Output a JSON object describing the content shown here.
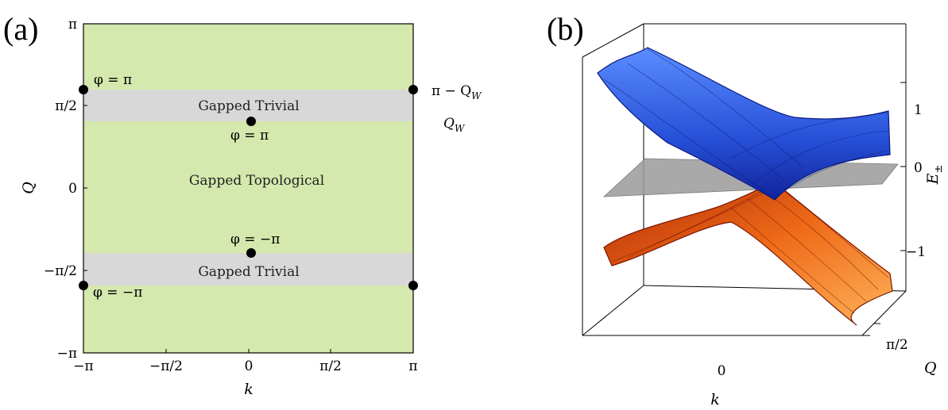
{
  "chart_data": [
    {
      "type": "phase-diagram",
      "panel": "(a)",
      "xlabel": "k",
      "ylabel": "Q",
      "xlim": [
        "-π",
        "π"
      ],
      "ylim": [
        "-π",
        "π"
      ],
      "xticks": [
        "−π",
        "−π/2",
        "0",
        "π/2",
        "π"
      ],
      "yticks": [
        "π",
        "π/2",
        "0",
        "−π/2",
        "−π"
      ],
      "colors": {
        "topological": "#d5e8ad",
        "trivial": "#d8d8d8",
        "point": "#000000"
      },
      "regions": [
        {
          "label": "Gapped Topological",
          "Q_range": [
            -1.57,
            1.57
          ],
          "fill": "topological"
        },
        {
          "label": "Gapped Trivial",
          "Q_range": [
            1.27,
            1.95
          ],
          "fill": "trivial"
        },
        {
          "label": "Gapped Trivial",
          "Q_range": [
            -1.95,
            -1.27
          ],
          "fill": "trivial"
        }
      ],
      "points": [
        {
          "k": -3.1416,
          "Q": 2.1,
          "label": "φ = π"
        },
        {
          "k": 3.1416,
          "Q": 1.95,
          "label": "π − Q_W"
        },
        {
          "k": 0,
          "Q": 1.3,
          "label": "φ = π"
        },
        {
          "k": 0,
          "Q": -1.3,
          "label": "φ = −π"
        },
        {
          "k": -3.1416,
          "Q": -1.95,
          "label": "φ = −π"
        },
        {
          "k": 3.1416,
          "Q": -1.95,
          "label": ""
        }
      ],
      "side_labels": {
        "top": "π − Q_W",
        "bottom": "Q_W"
      }
    },
    {
      "type": "surface3d",
      "panel": "(b)",
      "xlabel": "k",
      "ylabel": "Q",
      "zlabel": "E±",
      "xticks": [
        "0"
      ],
      "yticks": [
        "π/2"
      ],
      "zticks": [
        "1",
        "0",
        "−1"
      ],
      "series": [
        {
          "name": "E+",
          "color": "#1f3fd0"
        },
        {
          "name": "E−",
          "color": "#d24a10"
        }
      ],
      "plane": {
        "z": 0,
        "color": "#9a9a9a"
      }
    }
  ],
  "texts": {
    "panel_a": "(a)",
    "panel_b": "(b)",
    "region_top": "Gapped Trivial",
    "region_mid": "Gapped Topological",
    "region_bot": "Gapped Trivial",
    "ann_tl": "φ = π",
    "ann_center_top": "φ = π",
    "ann_center_bot": "φ = −π",
    "ann_bl": "φ = −π",
    "ann_tr_main": "π − Q",
    "ann_tr_sub": "W",
    "ann_qw_main": "Q",
    "ann_qw_sub": "W",
    "a_x_ticks": [
      "−π",
      "−π/2",
      "0",
      "π/2",
      "π"
    ],
    "a_y_ticks": [
      "π",
      "π/2",
      "0",
      "−π/2",
      "−π"
    ],
    "a_xlabel": "k",
    "a_ylabel": "Q",
    "b_z_ticks": [
      "1",
      "0",
      "−1"
    ],
    "b_zlabel_main": "E",
    "b_zlabel_sub": "±",
    "b_x_tick": "0",
    "b_y_tick": "π/2",
    "b_xlabel": "k",
    "b_ylabel": "Q"
  }
}
